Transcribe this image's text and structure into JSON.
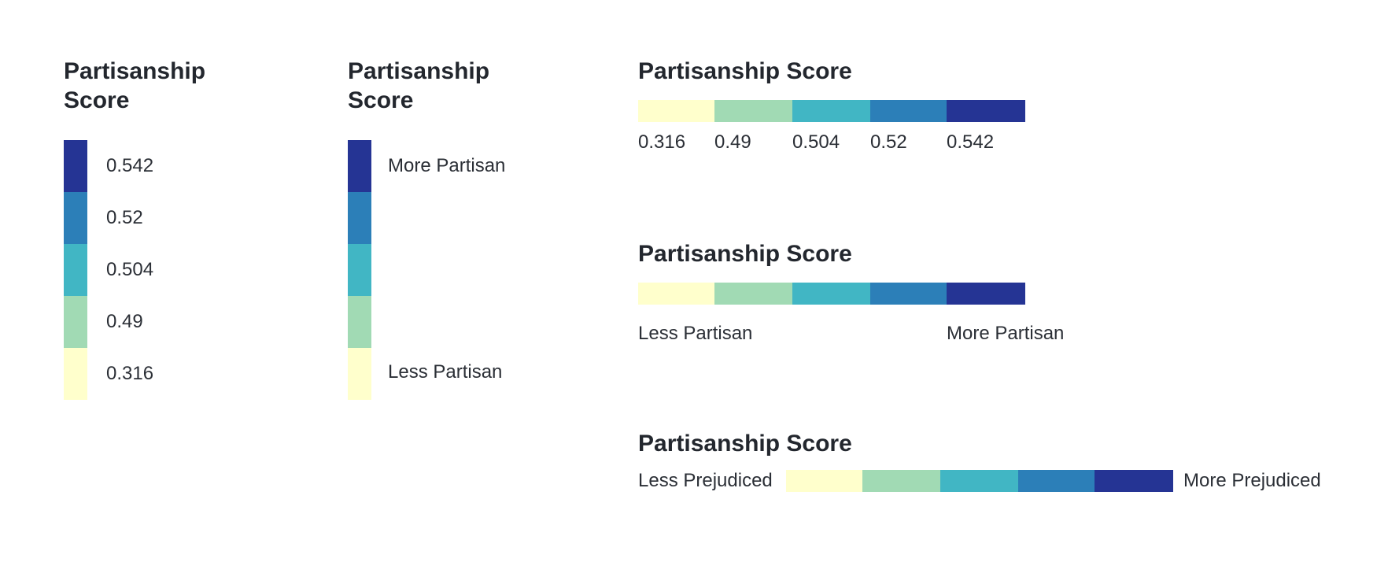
{
  "colors": {
    "bin1": "#ffffcc",
    "bin2": "#a1dab4",
    "bin3": "#41b6c4",
    "bin4": "#2c7fb8",
    "bin5": "#253494"
  },
  "legend_a": {
    "title": "Partisanship Score",
    "labels_top_to_bottom": [
      "0.542",
      "0.52",
      "0.504",
      "0.49",
      "0.316"
    ]
  },
  "legend_b": {
    "title": "Partisanship Score",
    "top_label": "More Partisan",
    "bottom_label": "Less Partisan"
  },
  "legend_c": {
    "title": "Partisanship Score",
    "labels_left_to_right": [
      "0.316",
      "0.49",
      "0.504",
      "0.52",
      "0.542"
    ]
  },
  "legend_d": {
    "title": "Partisanship Score",
    "left_label": "Less Partisan",
    "right_label": "More Partisan"
  },
  "legend_e": {
    "title": "Partisanship Score",
    "left_label": "Less Prejudiced",
    "right_label": "More Prejudiced"
  }
}
